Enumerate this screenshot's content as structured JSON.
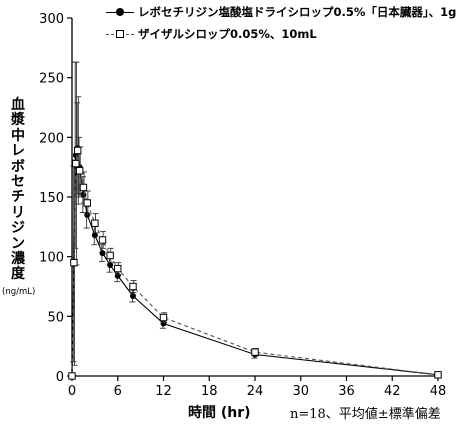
{
  "chart_data": {
    "type": "line",
    "xlabel": "時間 (hr)",
    "ylabel": "血漿中レボセチリジン濃度",
    "yunit": "(ng/mL)",
    "note": "n=18、平均値±標準偏差",
    "xlim": [
      0,
      48
    ],
    "ylim": [
      0,
      300
    ],
    "xticks": [
      0,
      6,
      12,
      18,
      24,
      30,
      36,
      42,
      48
    ],
    "yticks": [
      0,
      50,
      100,
      150,
      200,
      250,
      300
    ],
    "grid": false,
    "legend_position": "top",
    "series": [
      {
        "name": "レボセチリジン塩酸塩ドライシロップ0.5%「日本臓器」、1g",
        "marker": "filled-circle",
        "line": "solid",
        "color": "#000000",
        "points": [
          {
            "x": 0,
            "y": 0,
            "sd": 0
          },
          {
            "x": 0.25,
            "y": 94,
            "sd": 82
          },
          {
            "x": 0.5,
            "y": 185,
            "sd": 78
          },
          {
            "x": 0.75,
            "y": 191,
            "sd": 38
          },
          {
            "x": 1,
            "y": 175,
            "sd": 25
          },
          {
            "x": 1.5,
            "y": 152,
            "sd": 15
          },
          {
            "x": 2,
            "y": 135,
            "sd": 11
          },
          {
            "x": 3,
            "y": 118,
            "sd": 8
          },
          {
            "x": 4,
            "y": 103,
            "sd": 7
          },
          {
            "x": 5,
            "y": 93,
            "sd": 6
          },
          {
            "x": 6,
            "y": 84,
            "sd": 5
          },
          {
            "x": 8,
            "y": 67,
            "sd": 5
          },
          {
            "x": 12,
            "y": 44,
            "sd": 4
          },
          {
            "x": 24,
            "y": 18,
            "sd": 3
          },
          {
            "x": 48,
            "y": 1,
            "sd": 1
          }
        ]
      },
      {
        "name": "ザイザルシロップ0.05%、10mL",
        "marker": "open-square",
        "line": "dashed",
        "color": "#000000",
        "points": [
          {
            "x": 0,
            "y": 0,
            "sd": 0
          },
          {
            "x": 0.25,
            "y": 95,
            "sd": 86
          },
          {
            "x": 0.5,
            "y": 178,
            "sd": 85
          },
          {
            "x": 0.75,
            "y": 189,
            "sd": 45
          },
          {
            "x": 1,
            "y": 172,
            "sd": 20
          },
          {
            "x": 1.5,
            "y": 158,
            "sd": 13
          },
          {
            "x": 2,
            "y": 145,
            "sd": 10
          },
          {
            "x": 3,
            "y": 128,
            "sd": 8
          },
          {
            "x": 4,
            "y": 114,
            "sd": 7
          },
          {
            "x": 5,
            "y": 101,
            "sd": 6
          },
          {
            "x": 6,
            "y": 90,
            "sd": 5
          },
          {
            "x": 8,
            "y": 75,
            "sd": 5
          },
          {
            "x": 12,
            "y": 49,
            "sd": 4
          },
          {
            "x": 24,
            "y": 20,
            "sd": 3
          },
          {
            "x": 48,
            "y": 1,
            "sd": 1
          }
        ]
      }
    ]
  }
}
